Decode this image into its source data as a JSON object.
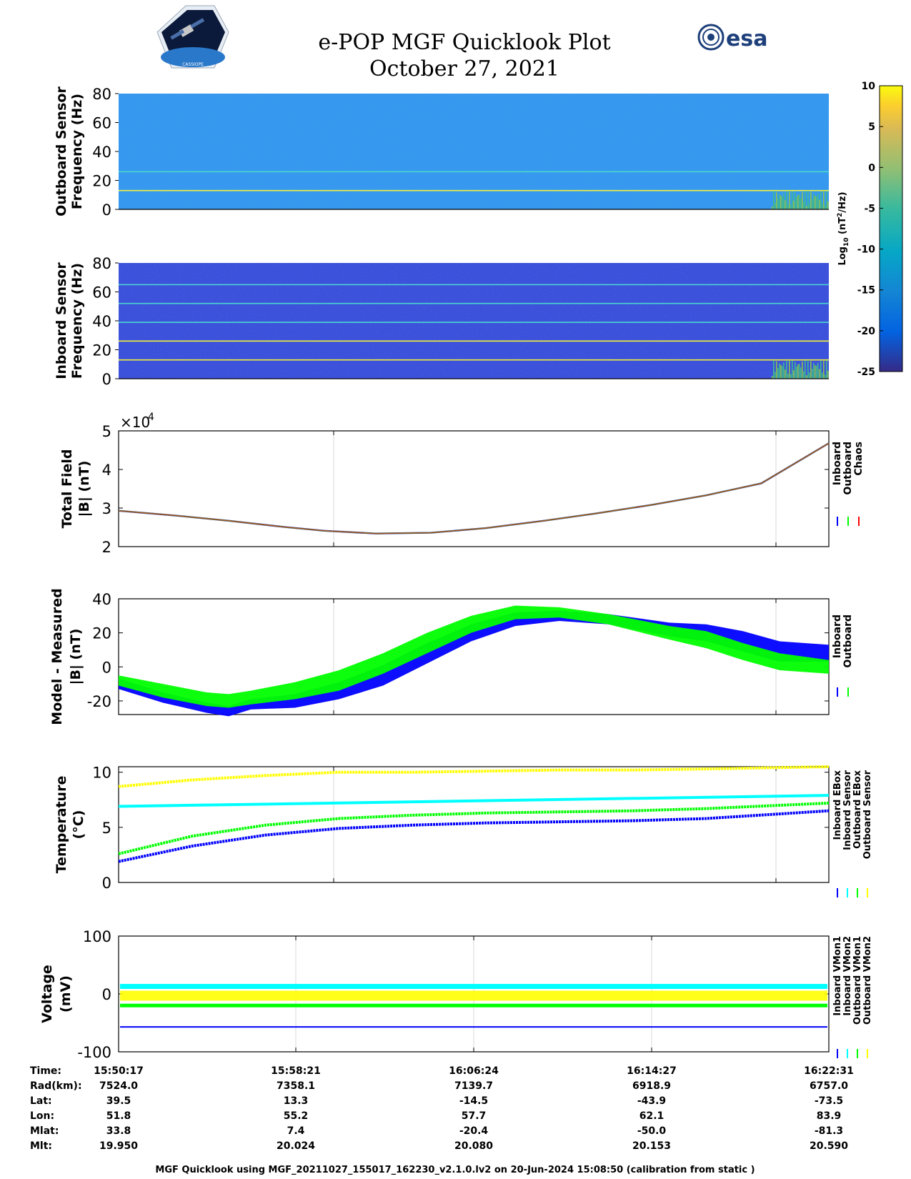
{
  "header": {
    "title": "e-POP MGF Quicklook Plot",
    "date": "October 27, 2021",
    "cassiope_logo_text": "CASSIOPE",
    "esa_logo_text": "esa"
  },
  "colorbar": {
    "label_main": "Log",
    "label_sub": "10",
    "label_unit_pre": " (nT",
    "label_unit_sup": "2",
    "label_unit_post": "/Hz)",
    "ticks": [
      10,
      5,
      0,
      -5,
      -10,
      -15,
      -20,
      -25
    ],
    "range": [
      -25,
      10
    ],
    "colormap": "parula"
  },
  "colors": {
    "inboard": "#0000ff",
    "outboard": "#00ff00",
    "chaos": "#ff0000",
    "cyan": "#00ffff",
    "yellow": "#ffff00",
    "spec_outboard_bg": "#2f8fec",
    "spec_inboard_bg": "#3344d6",
    "spec_line": "#f2f23a",
    "spec_line_cyan": "#4ad6ce"
  },
  "chart_data": [
    {
      "type": "heatmap",
      "name": "outboard_spectrogram",
      "ylabel_line1": "Outboard Sensor",
      "ylabel_line2": "Frequency (Hz)",
      "ylim": [
        0,
        80
      ],
      "yticks": [
        0,
        20,
        40,
        60,
        80
      ],
      "lines": [
        {
          "freq": 13,
          "color": "yellow"
        },
        {
          "freq": 26,
          "color": "cyan"
        }
      ],
      "background_level": -12
    },
    {
      "type": "heatmap",
      "name": "inboard_spectrogram",
      "ylabel_line1": "Inboard Sensor",
      "ylabel_line2": "Frequency (Hz)",
      "ylim": [
        0,
        80
      ],
      "yticks": [
        0,
        20,
        40,
        60,
        80
      ],
      "lines": [
        {
          "freq": 13,
          "color": "yellow"
        },
        {
          "freq": 26,
          "color": "yellow"
        },
        {
          "freq": 39,
          "color": "cyan"
        },
        {
          "freq": 52,
          "color": "cyan"
        },
        {
          "freq": 65,
          "color": "cyan"
        }
      ],
      "background_level": -20
    },
    {
      "type": "line",
      "name": "total_field",
      "ylabel_line1": "Total Field",
      "ylabel_line2": "|B| (nT)",
      "multiplier": "×10",
      "multiplier_exp": "4",
      "ylim": [
        2,
        5
      ],
      "yticks": [
        2,
        3,
        4,
        5
      ],
      "legend": [
        "Inboard",
        "Outboard",
        "Chaos"
      ],
      "x": [
        0,
        120,
        240,
        300,
        360,
        480,
        600,
        720,
        840,
        960,
        1080,
        1200,
        1334
      ],
      "series": [
        {
          "name": "Chaos",
          "values": [
            2.93,
            2.84,
            2.74,
            2.68,
            2.59,
            2.45,
            2.35,
            2.35,
            2.42,
            2.52,
            2.64,
            2.77,
            2.92
          ]
        }
      ],
      "series_full": [
        {
          "name": "Chaos",
          "x": [
            0,
            180,
            360,
            540,
            700,
            860,
            1000,
            1160,
            1334,
            1500,
            1700,
            1900
          ],
          "values": [
            2.93,
            2.78,
            2.59,
            2.4,
            2.34,
            2.38,
            2.55,
            2.78,
            3.02,
            3.3,
            3.72,
            4.3
          ]
        }
      ],
      "series_chaos": [
        {
          "name": "Chaos",
          "x": [
            0,
            260,
            520,
            720,
            900,
            1100,
            1334,
            1500,
            1700,
            1934
          ],
          "values": [
            2.93,
            2.65,
            2.42,
            2.34,
            2.4,
            2.6,
            2.9,
            3.2,
            3.62,
            4.3
          ]
        }
      ],
      "data": {
        "x": [
          0,
          150,
          300,
          450,
          560,
          700,
          850,
          1000,
          1150,
          1300,
          1450,
          1600,
          1750,
          1934
        ],
        "values": [
          2.93,
          2.81,
          2.67,
          2.51,
          2.41,
          2.34,
          2.36,
          2.48,
          2.66,
          2.86,
          3.08,
          3.33,
          3.64,
          4.68
        ]
      }
    },
    {
      "type": "line",
      "name": "model_minus_measured",
      "ylabel_line1": "Model - Measured",
      "ylabel_line2": "|B| (nT)",
      "ylim": [
        -28,
        40
      ],
      "yticks": [
        -20,
        0,
        20,
        40
      ],
      "legend": [
        "Inboard",
        "Outboard"
      ],
      "series": [
        {
          "name": "Inboard",
          "x": [
            0,
            120,
            240,
            300,
            360,
            480,
            600,
            720,
            840,
            960,
            1080,
            1200,
            1334,
            1500,
            1600,
            1700,
            1800,
            1934
          ],
          "values": [
            -10,
            -18,
            -24,
            -26,
            -22,
            -20,
            -14,
            -5,
            8,
            20,
            28,
            30,
            28,
            22,
            20,
            15,
            9,
            8
          ],
          "spread": [
            3,
            3,
            3,
            3,
            3,
            4,
            5,
            6,
            6,
            5,
            4,
            3,
            3,
            4,
            5,
            6,
            6,
            5
          ]
        },
        {
          "name": "Outboard",
          "x": [
            0,
            120,
            240,
            300,
            360,
            480,
            600,
            720,
            840,
            960,
            1080,
            1200,
            1334,
            1500,
            1600,
            1700,
            1800,
            1934
          ],
          "values": [
            -8,
            -14,
            -19,
            -20,
            -18,
            -14,
            -8,
            2,
            14,
            25,
            32,
            32,
            28,
            20,
            16,
            9,
            3,
            0
          ],
          "spread": [
            3,
            4,
            4,
            4,
            4,
            5,
            6,
            6,
            6,
            5,
            4,
            3,
            3,
            4,
            5,
            5,
            5,
            4
          ]
        }
      ]
    },
    {
      "type": "line",
      "name": "temperature",
      "ylabel_line1": "Temperature",
      "ylabel_line2": "(°C)",
      "ylim": [
        0,
        10.5
      ],
      "yticks": [
        0,
        5,
        10
      ],
      "legend": [
        "Inboard EBox",
        "Inboard Sensor",
        "Outboard EBox",
        "Outboard Sensor"
      ],
      "series": [
        {
          "name": "Inboard EBox",
          "x": [
            0,
            200,
            400,
            600,
            800,
            1000,
            1200,
            1400,
            1600,
            1934
          ],
          "values": [
            1.9,
            3.3,
            4.3,
            4.9,
            5.2,
            5.4,
            5.5,
            5.6,
            5.8,
            6.5
          ]
        },
        {
          "name": "Inboard Sensor",
          "x": [
            0,
            1934
          ],
          "values": [
            6.9,
            7.9
          ]
        },
        {
          "name": "Outboard EBox",
          "x": [
            0,
            200,
            400,
            600,
            800,
            1000,
            1200,
            1400,
            1600,
            1934
          ],
          "values": [
            2.6,
            4.2,
            5.2,
            5.8,
            6.1,
            6.3,
            6.4,
            6.5,
            6.7,
            7.2
          ]
        },
        {
          "name": "Outboard Sensor",
          "x": [
            0,
            200,
            400,
            600,
            800,
            1000,
            1200,
            1400,
            1600,
            1934
          ],
          "values": [
            8.7,
            9.3,
            9.7,
            10.0,
            10.0,
            10.1,
            10.2,
            10.2,
            10.3,
            10.5
          ]
        }
      ]
    },
    {
      "type": "line",
      "name": "voltage",
      "ylabel_line1": "Voltage",
      "ylabel_line2": "(mV)",
      "ylim": [
        -100,
        100
      ],
      "yticks": [
        -100,
        0,
        100
      ],
      "legend": [
        "Inboard VMon1",
        "Inboard VMon2",
        "Outboard VMon1",
        "Outboard VMon2"
      ],
      "series": [
        {
          "name": "Inboard VMon1",
          "level": -57
        },
        {
          "name": "Inboard VMon2",
          "level": 13
        },
        {
          "name": "Outboard VMon1",
          "level": -20
        },
        {
          "name": "Outboard VMon2",
          "level": -3
        }
      ]
    }
  ],
  "time_axis": {
    "labels": [
      "Time:",
      "Rad(km):",
      "Lat:",
      "Lon:",
      "Mlat:",
      "Mlt:"
    ],
    "columns": [
      [
        "15:50:17",
        "7524.0",
        "39.5",
        "51.8",
        "33.8",
        "19.950"
      ],
      [
        "15:58:21",
        "7358.1",
        "13.3",
        "55.2",
        "7.4",
        "20.024"
      ],
      [
        "16:06:24",
        "7139.7",
        "-14.5",
        "57.7",
        "-20.4",
        "20.080"
      ],
      [
        "16:14:27",
        "6918.9",
        "-43.9",
        "62.1",
        "-50.0",
        "20.153"
      ],
      [
        "16:22:31",
        "6757.0",
        "-73.5",
        "83.9",
        "-81.3",
        "20.590"
      ]
    ]
  },
  "footer": {
    "text": "MGF Quicklook using MGF_20211027_155017_162230_v2.1.0.lv2 on 20-Jun-2024 15:08:50 (calibration from static )"
  }
}
